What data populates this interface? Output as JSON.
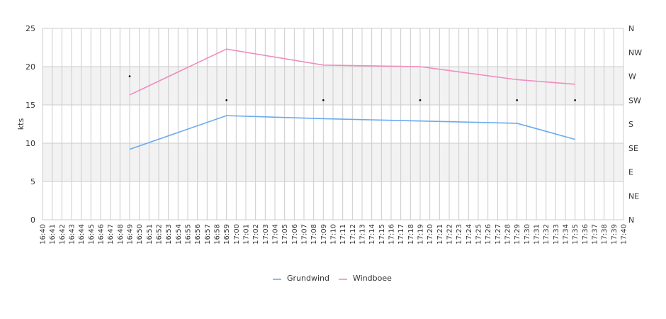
{
  "chart_data": {
    "type": "line",
    "ylabel": "kts",
    "ylim": [
      0,
      25
    ],
    "yticks": [
      0,
      5,
      10,
      15,
      20,
      25
    ],
    "x_ticks": [
      "16:40",
      "16:41",
      "16:42",
      "16:43",
      "16:44",
      "16:45",
      "16:46",
      "16:47",
      "16:48",
      "16:49",
      "16:50",
      "16:51",
      "16:52",
      "16:53",
      "16:54",
      "16:55",
      "16:56",
      "16:57",
      "16:58",
      "16:59",
      "17:00",
      "17:01",
      "17:02",
      "17:03",
      "17:04",
      "17:05",
      "17:06",
      "17:07",
      "17:08",
      "17:09",
      "17:10",
      "17:11",
      "17:12",
      "17:13",
      "17:14",
      "17:15",
      "17:16",
      "17:17",
      "17:18",
      "17:19",
      "17:20",
      "17:21",
      "17:22",
      "17:23",
      "17:24",
      "17:25",
      "17:26",
      "17:27",
      "17:28",
      "17:29",
      "17:30",
      "17:31",
      "17:32",
      "17:33",
      "17:34",
      "17:35",
      "17:36",
      "17:37",
      "17:38",
      "17:39",
      "17:40"
    ],
    "x": [
      "16:49",
      "16:59",
      "17:09",
      "17:19",
      "17:29",
      "17:35"
    ],
    "series": [
      {
        "name": "Grundwind",
        "color": "#6aaaf0",
        "values": [
          9.2,
          13.6,
          13.2,
          12.9,
          12.6,
          10.5
        ]
      },
      {
        "name": "Windboee",
        "color": "#f08cbe",
        "values": [
          16.3,
          22.3,
          20.2,
          20.0,
          18.3,
          17.7
        ]
      }
    ],
    "direction": {
      "axis_labels": [
        "N",
        "NE",
        "E",
        "SE",
        "S",
        "SW",
        "W",
        "NW",
        "N"
      ],
      "marker_times": [
        "16:49",
        "16:59",
        "17:09",
        "17:19",
        "17:29",
        "17:35"
      ],
      "values": [
        "W",
        "SW",
        "SW",
        "SW",
        "SW",
        "SW"
      ]
    },
    "bands": [
      {
        "from": 5,
        "to": 10,
        "color": "#f2f2f2"
      },
      {
        "from": 15,
        "to": 20,
        "color": "#f2f2f2"
      }
    ],
    "grid": true,
    "legend_position": "bottom"
  }
}
